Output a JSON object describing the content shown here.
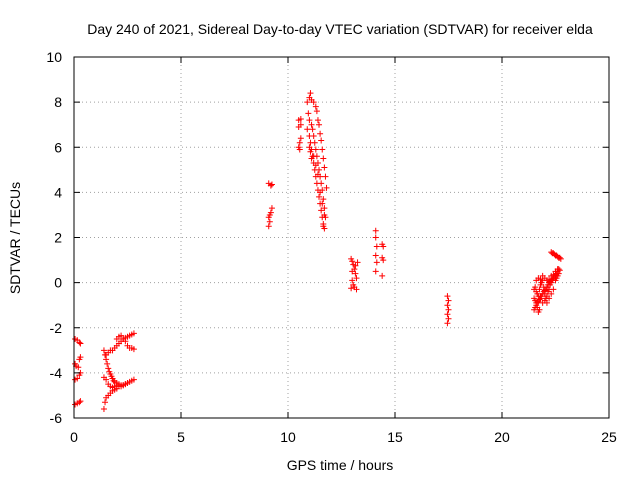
{
  "chart_data": {
    "type": "scatter",
    "title": "Day 240 of 2021, Sidereal Day-to-day VTEC variation (SDTVAR) for receiver elda",
    "xlabel": "GPS time / hours",
    "ylabel": "SDTVAR / TECUs",
    "xlim": [
      0,
      25
    ],
    "ylim": [
      -6,
      10
    ],
    "xticks": [
      "0",
      "5",
      "10",
      "15",
      "20",
      "25"
    ],
    "yticks": [
      "-6",
      "-4",
      "-2",
      "0",
      "2",
      "4",
      "6",
      "8",
      "10"
    ],
    "grid": true,
    "marker": "plus",
    "color": "#ff0000",
    "series": [
      {
        "name": "SDTVAR",
        "points": [
          [
            0.05,
            -2.5
          ],
          [
            0.15,
            -2.55
          ],
          [
            0.25,
            -2.65
          ],
          [
            0.3,
            -2.7
          ],
          [
            0.05,
            -3.6
          ],
          [
            0.1,
            -3.7
          ],
          [
            0.2,
            -3.75
          ],
          [
            0.25,
            -3.4
          ],
          [
            0.3,
            -3.3
          ],
          [
            0.05,
            -4.3
          ],
          [
            0.15,
            -4.25
          ],
          [
            0.25,
            -4.1
          ],
          [
            0.3,
            -4.0
          ],
          [
            0.05,
            -5.4
          ],
          [
            0.15,
            -5.35
          ],
          [
            0.25,
            -5.3
          ],
          [
            0.3,
            -5.25
          ],
          [
            1.4,
            -5.6
          ],
          [
            1.45,
            -5.3
          ],
          [
            1.5,
            -5.1
          ],
          [
            1.6,
            -5.0
          ],
          [
            1.7,
            -4.9
          ],
          [
            1.8,
            -4.8
          ],
          [
            1.9,
            -4.75
          ],
          [
            2.0,
            -4.7
          ],
          [
            2.1,
            -4.6
          ],
          [
            2.2,
            -4.6
          ],
          [
            2.3,
            -4.55
          ],
          [
            2.4,
            -4.5
          ],
          [
            2.5,
            -4.45
          ],
          [
            2.6,
            -4.4
          ],
          [
            2.7,
            -4.35
          ],
          [
            2.8,
            -4.3
          ],
          [
            1.4,
            -4.2
          ],
          [
            1.5,
            -4.3
          ],
          [
            1.6,
            -4.5
          ],
          [
            1.7,
            -4.6
          ],
          [
            1.8,
            -4.65
          ],
          [
            1.9,
            -4.6
          ],
          [
            2.0,
            -4.55
          ],
          [
            1.4,
            -3.0
          ],
          [
            1.45,
            -3.2
          ],
          [
            1.5,
            -3.4
          ],
          [
            1.55,
            -3.6
          ],
          [
            1.6,
            -3.8
          ],
          [
            1.65,
            -3.95
          ],
          [
            1.7,
            -4.05
          ],
          [
            1.75,
            -4.15
          ],
          [
            1.8,
            -4.25
          ],
          [
            1.85,
            -4.35
          ],
          [
            1.9,
            -4.4
          ],
          [
            2.0,
            -4.45
          ],
          [
            2.1,
            -4.5
          ],
          [
            2.2,
            -4.55
          ],
          [
            2.3,
            -4.55
          ],
          [
            2.4,
            -4.5
          ],
          [
            1.5,
            -3.2
          ],
          [
            1.6,
            -3.1
          ],
          [
            1.7,
            -3.0
          ],
          [
            1.8,
            -3.0
          ],
          [
            1.9,
            -2.9
          ],
          [
            2.0,
            -2.8
          ],
          [
            2.1,
            -2.7
          ],
          [
            2.2,
            -2.6
          ],
          [
            2.3,
            -2.5
          ],
          [
            2.4,
            -2.45
          ],
          [
            2.5,
            -2.4
          ],
          [
            2.6,
            -2.35
          ],
          [
            2.7,
            -2.3
          ],
          [
            2.8,
            -2.25
          ],
          [
            2.0,
            -2.5
          ],
          [
            2.1,
            -2.4
          ],
          [
            2.2,
            -2.35
          ],
          [
            2.3,
            -2.5
          ],
          [
            2.4,
            -2.6
          ],
          [
            2.5,
            -2.8
          ],
          [
            2.6,
            -2.9
          ],
          [
            2.7,
            -2.9
          ],
          [
            2.8,
            -2.95
          ],
          [
            9.1,
            4.4
          ],
          [
            9.2,
            4.3
          ],
          [
            9.25,
            4.35
          ],
          [
            9.1,
            2.9
          ],
          [
            9.15,
            3.0
          ],
          [
            9.2,
            3.1
          ],
          [
            9.25,
            3.3
          ],
          [
            9.15,
            2.7
          ],
          [
            9.1,
            2.5
          ],
          [
            10.5,
            6.0
          ],
          [
            10.55,
            6.2
          ],
          [
            10.6,
            6.4
          ],
          [
            10.5,
            6.9
          ],
          [
            10.6,
            7.0
          ],
          [
            10.5,
            7.2
          ],
          [
            10.6,
            7.25
          ],
          [
            10.55,
            5.9
          ],
          [
            10.9,
            8.0
          ],
          [
            11.0,
            8.2
          ],
          [
            11.05,
            8.4
          ],
          [
            11.1,
            8.1
          ],
          [
            11.2,
            8.0
          ],
          [
            11.3,
            7.8
          ],
          [
            11.35,
            7.6
          ],
          [
            11.4,
            7.2
          ],
          [
            11.45,
            7.0
          ],
          [
            11.5,
            6.6
          ],
          [
            11.55,
            6.3
          ],
          [
            11.6,
            5.9
          ],
          [
            11.65,
            5.5
          ],
          [
            11.7,
            5.1
          ],
          [
            11.75,
            4.7
          ],
          [
            11.8,
            4.2
          ],
          [
            10.9,
            6.8
          ],
          [
            11.0,
            6.5
          ],
          [
            11.05,
            6.2
          ],
          [
            11.1,
            5.9
          ],
          [
            11.15,
            5.6
          ],
          [
            11.2,
            5.3
          ],
          [
            11.25,
            5.0
          ],
          [
            11.3,
            4.7
          ],
          [
            11.35,
            4.4
          ],
          [
            11.4,
            4.1
          ],
          [
            11.45,
            3.8
          ],
          [
            11.5,
            3.5
          ],
          [
            11.55,
            3.2
          ],
          [
            11.6,
            2.9
          ],
          [
            11.65,
            2.6
          ],
          [
            11.7,
            2.4
          ],
          [
            10.95,
            7.5
          ],
          [
            11.0,
            7.2
          ],
          [
            11.1,
            7.0
          ],
          [
            11.15,
            6.8
          ],
          [
            11.2,
            6.5
          ],
          [
            11.25,
            6.2
          ],
          [
            11.3,
            5.9
          ],
          [
            11.35,
            5.6
          ],
          [
            11.4,
            5.3
          ],
          [
            11.45,
            5.0
          ],
          [
            11.5,
            4.7
          ],
          [
            11.55,
            4.4
          ],
          [
            11.6,
            4.1
          ],
          [
            11.65,
            3.7
          ],
          [
            11.7,
            3.3
          ],
          [
            11.75,
            2.9
          ],
          [
            11.0,
            6.0
          ],
          [
            11.05,
            5.8
          ],
          [
            11.1,
            5.5
          ],
          [
            11.2,
            5.6
          ],
          [
            11.3,
            5.2
          ],
          [
            11.4,
            4.8
          ],
          [
            11.5,
            4.0
          ],
          [
            11.6,
            3.5
          ],
          [
            11.7,
            3.0
          ],
          [
            11.65,
            2.5
          ],
          [
            12.95,
            1.05
          ],
          [
            13.0,
            0.95
          ],
          [
            13.05,
            0.8
          ],
          [
            13.1,
            0.6
          ],
          [
            13.15,
            0.4
          ],
          [
            13.2,
            0.2
          ],
          [
            13.0,
            0.1
          ],
          [
            13.05,
            -0.1
          ],
          [
            13.1,
            -0.2
          ],
          [
            13.2,
            -0.3
          ],
          [
            12.95,
            -0.25
          ],
          [
            13.0,
            0.5
          ],
          [
            13.15,
            0.75
          ],
          [
            13.25,
            0.9
          ],
          [
            14.1,
            2.3
          ],
          [
            14.1,
            2.0
          ],
          [
            14.15,
            1.6
          ],
          [
            14.1,
            1.2
          ],
          [
            14.15,
            0.9
          ],
          [
            14.1,
            0.5
          ],
          [
            14.4,
            1.7
          ],
          [
            14.45,
            1.6
          ],
          [
            14.4,
            1.1
          ],
          [
            14.45,
            1.0
          ],
          [
            14.4,
            0.3
          ],
          [
            17.45,
            -0.6
          ],
          [
            17.5,
            -0.8
          ],
          [
            17.45,
            -1.0
          ],
          [
            17.5,
            -1.2
          ],
          [
            17.45,
            -1.4
          ],
          [
            17.5,
            -1.6
          ],
          [
            17.45,
            -1.8
          ],
          [
            21.5,
            -1.2
          ],
          [
            21.55,
            -1.1
          ],
          [
            21.6,
            -1.0
          ],
          [
            21.65,
            -0.9
          ],
          [
            21.7,
            -0.85
          ],
          [
            21.75,
            -0.75
          ],
          [
            21.8,
            -0.7
          ],
          [
            21.85,
            -0.6
          ],
          [
            21.9,
            -0.5
          ],
          [
            21.95,
            -0.4
          ],
          [
            22.0,
            -0.35
          ],
          [
            22.05,
            -0.3
          ],
          [
            22.1,
            -0.2
          ],
          [
            22.15,
            -0.1
          ],
          [
            22.2,
            0.0
          ],
          [
            22.25,
            0.05
          ],
          [
            22.3,
            0.1
          ],
          [
            22.35,
            0.15
          ],
          [
            22.4,
            0.2
          ],
          [
            22.45,
            0.3
          ],
          [
            22.5,
            0.35
          ],
          [
            22.55,
            0.4
          ],
          [
            22.6,
            0.5
          ],
          [
            22.65,
            0.6
          ],
          [
            21.5,
            -0.3
          ],
          [
            21.55,
            -0.2
          ],
          [
            21.6,
            -0.4
          ],
          [
            21.65,
            -0.5
          ],
          [
            21.7,
            -0.6
          ],
          [
            21.75,
            -0.3
          ],
          [
            21.8,
            -0.1
          ],
          [
            21.85,
            0.0
          ],
          [
            21.9,
            0.1
          ],
          [
            21.95,
            -0.2
          ],
          [
            22.0,
            -0.5
          ],
          [
            22.05,
            -0.7
          ],
          [
            22.1,
            -0.6
          ],
          [
            22.15,
            -0.4
          ],
          [
            22.2,
            -0.3
          ],
          [
            22.25,
            -0.1
          ],
          [
            22.3,
            0.0
          ],
          [
            22.35,
            0.1
          ],
          [
            22.4,
            0.2
          ],
          [
            22.5,
            0.1
          ],
          [
            22.55,
            0.2
          ],
          [
            22.6,
            0.3
          ],
          [
            22.65,
            0.4
          ],
          [
            21.5,
            -0.7
          ],
          [
            21.55,
            -0.8
          ],
          [
            21.6,
            -0.9
          ],
          [
            21.65,
            -1.1
          ],
          [
            21.7,
            -1.3
          ],
          [
            21.75,
            -1.2
          ],
          [
            21.8,
            -0.6
          ],
          [
            21.9,
            -0.9
          ],
          [
            22.0,
            -0.8
          ],
          [
            22.1,
            -0.9
          ],
          [
            22.2,
            -0.7
          ],
          [
            22.3,
            -0.5
          ],
          [
            22.4,
            -0.3
          ],
          [
            21.6,
            0.1
          ],
          [
            21.7,
            0.2
          ],
          [
            21.8,
            0.15
          ],
          [
            21.9,
            0.3
          ],
          [
            22.0,
            0.2
          ],
          [
            22.1,
            0.1
          ],
          [
            22.2,
            0.15
          ],
          [
            22.3,
            0.3
          ],
          [
            22.4,
            0.35
          ],
          [
            22.5,
            0.5
          ],
          [
            22.6,
            0.6
          ],
          [
            22.7,
            0.55
          ],
          [
            22.3,
            1.35
          ],
          [
            22.35,
            1.3
          ],
          [
            22.4,
            1.3
          ],
          [
            22.45,
            1.25
          ],
          [
            22.5,
            1.2
          ],
          [
            22.55,
            1.2
          ],
          [
            22.6,
            1.15
          ],
          [
            22.65,
            1.1
          ],
          [
            22.7,
            1.1
          ],
          [
            22.75,
            1.05
          ]
        ]
      }
    ]
  }
}
